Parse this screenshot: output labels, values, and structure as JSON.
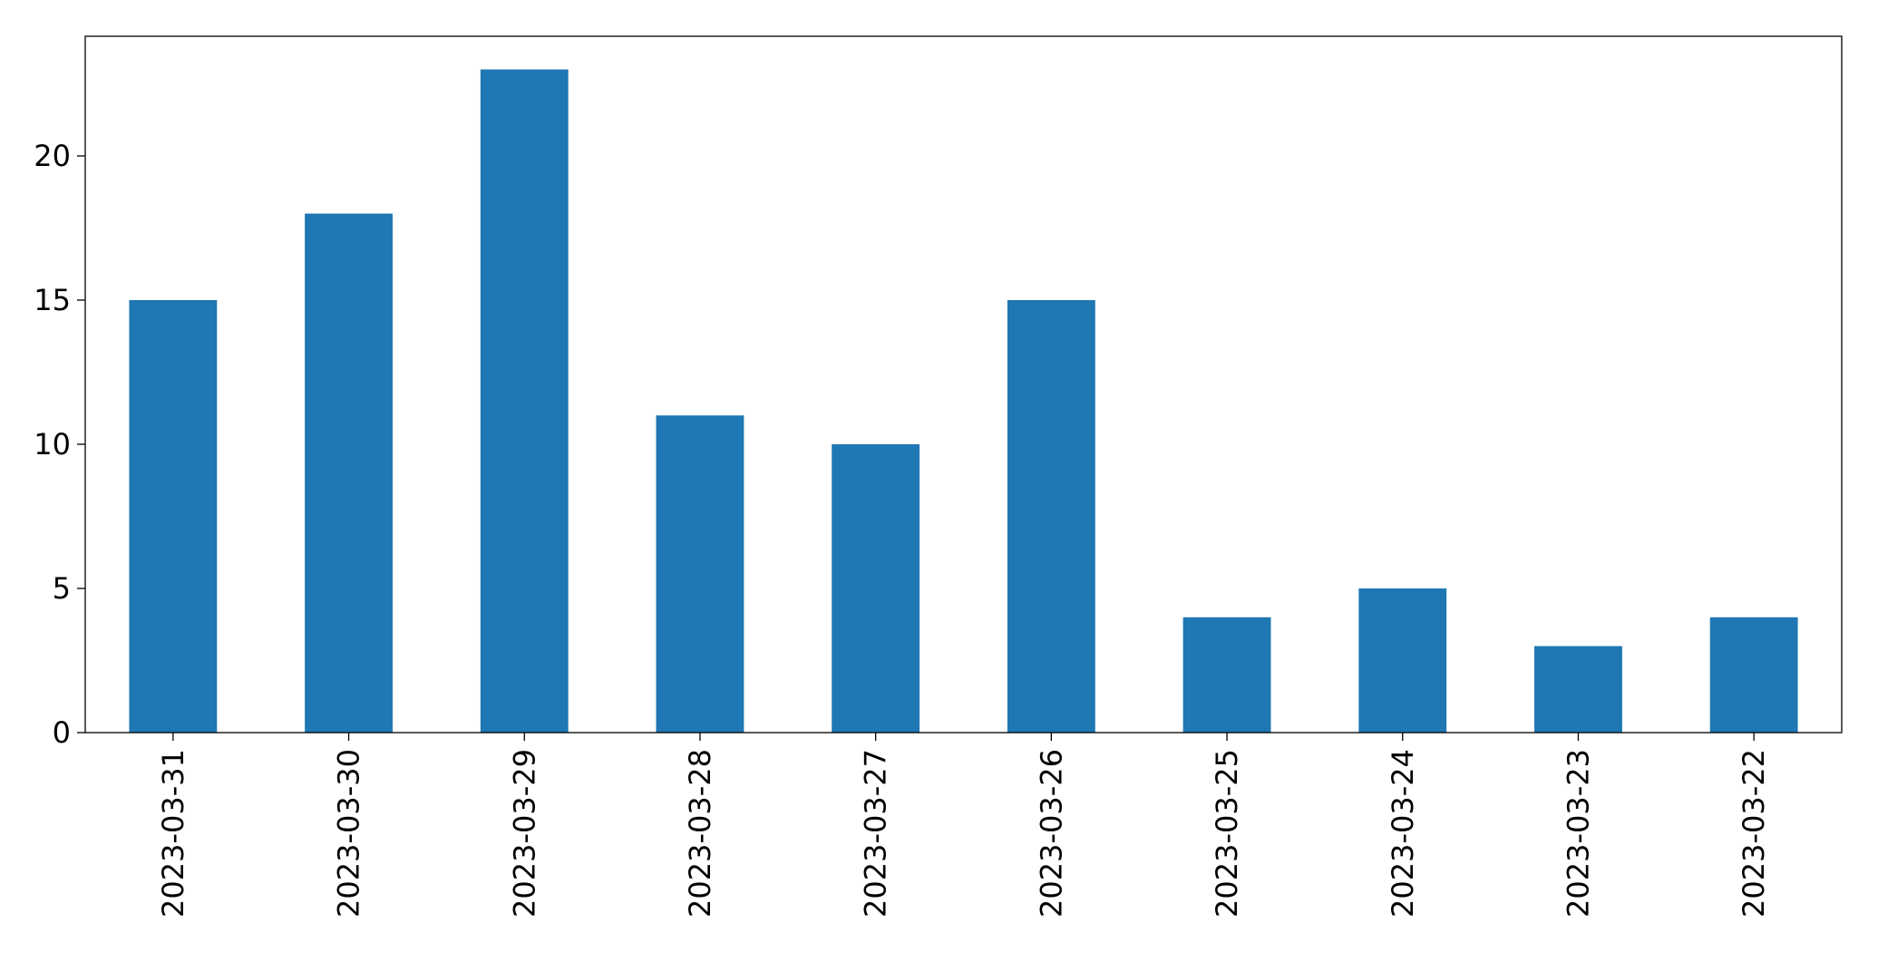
{
  "chart_data": {
    "type": "bar",
    "categories": [
      "2023-03-31",
      "2023-03-30",
      "2023-03-29",
      "2023-03-28",
      "2023-03-27",
      "2023-03-26",
      "2023-03-25",
      "2023-03-24",
      "2023-03-23",
      "2023-03-22"
    ],
    "values": [
      15,
      18,
      23,
      11,
      10,
      15,
      4,
      5,
      3,
      4
    ],
    "color": "#1f77b4",
    "ylim": [
      0,
      24.15
    ],
    "yticks": [
      0,
      5,
      10,
      15,
      20
    ],
    "grid": false
  }
}
